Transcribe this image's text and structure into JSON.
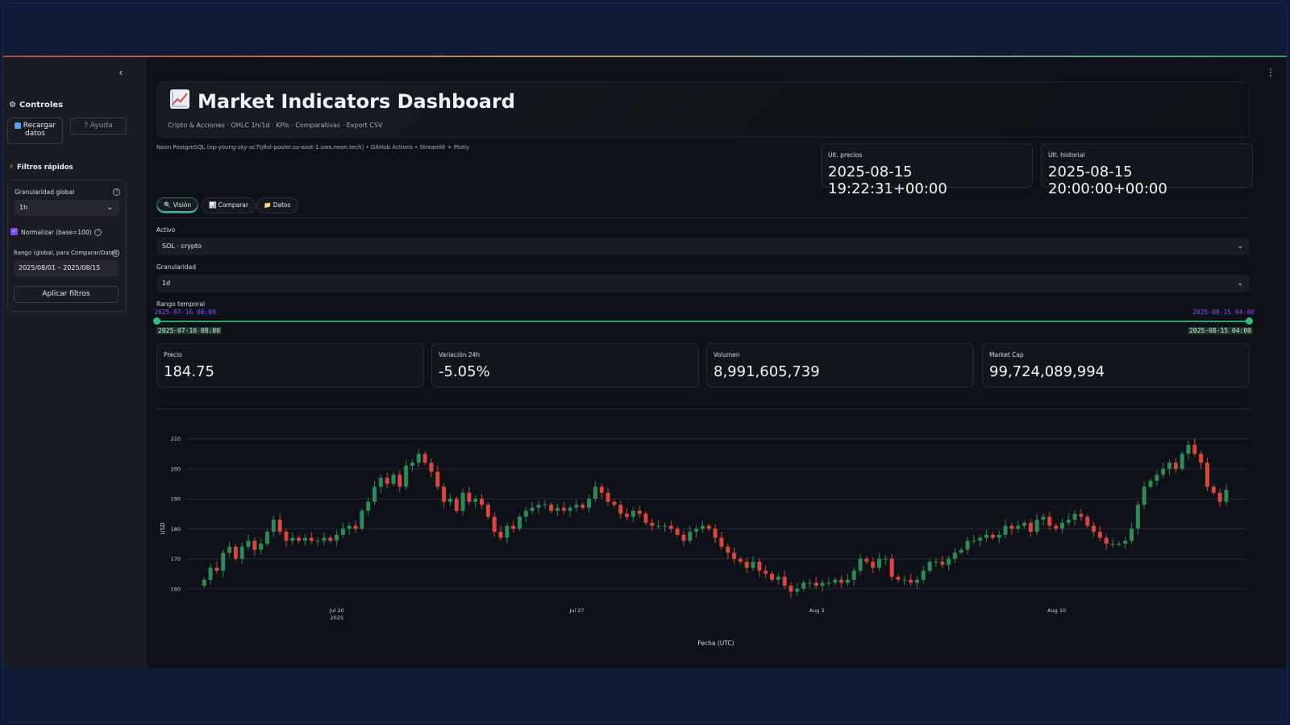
{
  "sidebar": {
    "collapse_icon": "chevron-left-icon",
    "controls_title": "Controles",
    "reload_label_1": "Recargar",
    "reload_label_2": "datos",
    "help_label": "Ayuda",
    "quick_filters_title": "Filtros rápidos",
    "granularity_label": "Granularidad global",
    "granularity_value": "1h",
    "normalize_label": "Normalizar (base=100)",
    "normalize_checked": true,
    "range_label": "Rango (global, para Comparar/Datos)",
    "range_value": "2025/08/01 – 2025/08/15",
    "apply_label": "Aplicar filtros"
  },
  "header": {
    "title": "Market Indicators Dashboard",
    "subtitle": "Cripto & Acciones · OHLC 1h/1d · KPIs · Comparativas · Export CSV",
    "info": "Neon PostgreSQL (ep-young-sky-ac7tj8ol-pooler.sa-east-1.aws.neon.tech) • GitHub Actions • Streamlit + Plotly"
  },
  "status": {
    "prices_label": "Últ. precios",
    "prices_value": "2025-08-15 19:22:31+00:00",
    "history_label": "Últ. historial",
    "history_value": "2025-08-15 20:00:00+00:00"
  },
  "tabs": [
    {
      "label": "Visión",
      "icon": "magnifier-icon",
      "active": true
    },
    {
      "label": "Comparar",
      "icon": "bar-chart-icon",
      "active": false
    },
    {
      "label": "Datos",
      "icon": "folder-icon",
      "active": false
    }
  ],
  "controls": {
    "asset_label": "Activo",
    "asset_value": "SOL · crypto",
    "granularity_label": "Granularidad",
    "granularity_value": "1d",
    "range_label": "Rango temporal",
    "range_start": "2025-07-16 08:00",
    "range_end": "2025-08-15 04:00",
    "range_start_box": "2025-07-16 08:00",
    "range_end_box": "2025-08-15 04:00"
  },
  "kpis": [
    {
      "label": "Precio",
      "value": "184.75"
    },
    {
      "label": "Variación 24h",
      "value": "-5.05%"
    },
    {
      "label": "Volumen",
      "value": "8,991,605,739"
    },
    {
      "label": "Market Cap",
      "value": "99,724,089,994"
    }
  ],
  "colors": {
    "up": "#2e8b57",
    "down": "#d9473f",
    "accent": "#7c4dff"
  },
  "chart_data": {
    "type": "candlestick",
    "xlabel": "Fecha (UTC)",
    "ylabel": "USD",
    "ylim": [
      157,
      211
    ],
    "yticks": [
      160,
      170,
      180,
      190,
      200,
      210
    ],
    "xticks": [
      {
        "label": "Jul 20",
        "sub": "2025",
        "t": 3.67
      },
      {
        "label": "Jul 27",
        "sub": "",
        "t": 10.67
      },
      {
        "label": "Aug 3",
        "sub": "",
        "t": 17.67
      },
      {
        "label": "Aug 10",
        "sub": "",
        "t": 24.67
      }
    ],
    "t_range": [
      -0.7,
      30.3
    ],
    "grid": true,
    "closes": [
      163,
      167,
      166,
      172,
      174,
      170,
      174,
      176,
      173,
      175,
      179,
      183,
      179,
      176,
      177,
      176,
      177,
      176,
      176,
      177,
      176,
      178,
      180,
      181,
      180,
      186,
      189,
      194,
      197,
      195,
      198,
      194,
      201,
      202,
      205,
      202,
      199,
      194,
      189,
      190,
      186,
      192,
      189,
      190,
      188,
      184,
      179,
      177,
      181,
      180,
      184,
      186,
      187,
      188,
      188,
      186,
      187,
      186,
      187,
      188,
      187,
      190,
      194,
      192,
      189,
      188,
      185,
      184,
      186,
      185,
      182,
      181,
      181,
      181,
      180,
      178,
      176,
      179,
      180,
      181,
      180,
      177,
      174,
      172,
      170,
      169,
      167,
      169,
      166,
      165,
      163,
      164,
      161,
      159,
      160,
      162,
      162,
      161,
      162,
      162,
      163,
      162,
      163,
      166,
      170,
      169,
      167,
      170,
      170,
      164,
      163,
      163,
      162,
      163,
      166,
      169,
      169,
      168,
      170,
      172,
      173,
      176,
      176,
      177,
      178,
      177,
      178,
      181,
      180,
      181,
      182,
      179,
      183,
      184,
      181,
      180,
      182,
      183,
      185,
      184,
      181,
      179,
      177,
      175,
      175,
      175,
      176,
      180,
      188,
      194,
      196,
      198,
      200,
      202,
      200,
      205,
      208,
      205,
      202,
      194,
      192,
      189,
      193
    ]
  }
}
